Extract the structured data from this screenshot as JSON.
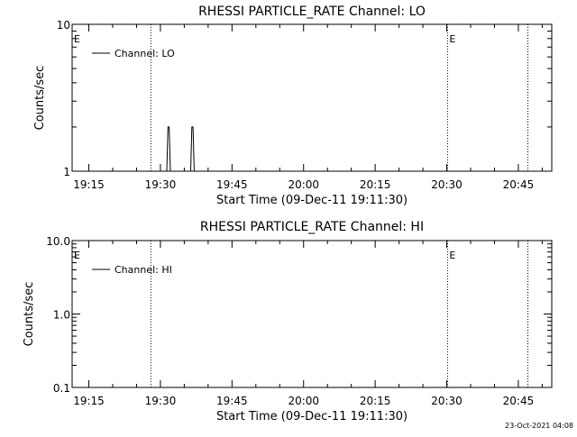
{
  "footer_timestamp": "23-Oct-2021 04:08",
  "chart_data": [
    {
      "type": "line",
      "title": "RHESSI PARTICLE_RATE Channel: LO",
      "xlabel": "Start Time (09-Dec-11 19:11:30)",
      "ylabel": "Counts/sec",
      "yscale": "log",
      "ylim": [
        1,
        10
      ],
      "xlim": [
        "19:11:30",
        "20:52:00"
      ],
      "x_ticks": [
        "19:15",
        "19:30",
        "19:45",
        "20:00",
        "20:15",
        "20:30",
        "20:45"
      ],
      "y_ticks": [
        "1",
        "10"
      ],
      "legend": "Channel: LO",
      "legend_position": "top-left",
      "markers": [
        {
          "time": "19:28:00",
          "label": ""
        },
        {
          "time": "20:30:10",
          "label": "E"
        },
        {
          "time": "20:47:00",
          "label": ""
        }
      ],
      "left_marker_label": "E",
      "series": [
        {
          "name": "Channel: LO",
          "x": [
            "19:31:20",
            "19:31:35",
            "19:31:50",
            "19:32:05",
            "19:36:20",
            "19:36:35",
            "19:36:50",
            "19:37:05"
          ],
          "y": [
            1,
            2,
            2,
            1,
            1,
            2,
            2,
            1
          ]
        }
      ]
    },
    {
      "type": "line",
      "title": "RHESSI PARTICLE_RATE Channel: HI",
      "xlabel": "Start Time (09-Dec-11 19:11:30)",
      "ylabel": "Counts/sec",
      "yscale": "log",
      "ylim": [
        0.1,
        10
      ],
      "xlim": [
        "19:11:30",
        "20:52:00"
      ],
      "x_ticks": [
        "19:15",
        "19:30",
        "19:45",
        "20:00",
        "20:15",
        "20:30",
        "20:45"
      ],
      "y_ticks": [
        "0.1",
        "1.0",
        "10.0"
      ],
      "legend": "Channel: HI",
      "legend_position": "top-left",
      "markers": [
        {
          "time": "19:28:00",
          "label": ""
        },
        {
          "time": "20:30:10",
          "label": "E"
        },
        {
          "time": "20:47:00",
          "label": ""
        }
      ],
      "left_marker_label": "E",
      "series": [
        {
          "name": "Channel: HI",
          "x": [],
          "y": []
        }
      ]
    }
  ]
}
